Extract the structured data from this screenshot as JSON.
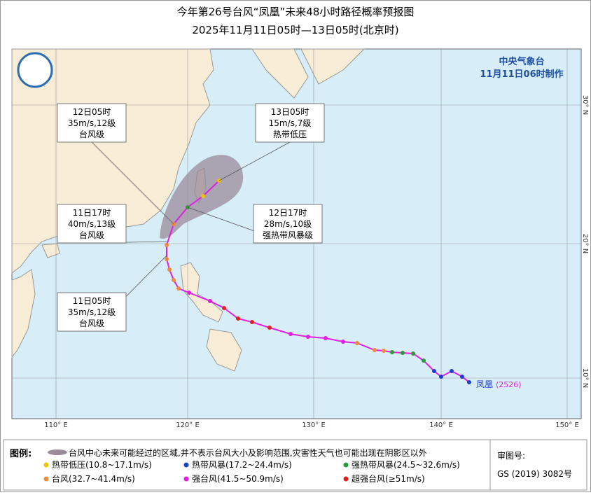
{
  "header": {
    "title": "今年第26号台风“凤凰”未来48小时路径概率预报图",
    "subtitle": "2025年11月11日05时—13日05时(北京时)"
  },
  "issuer": {
    "agency": "中央气象台",
    "made": "11月11日06时制作"
  },
  "callouts": [
    {
      "time": "12日05时",
      "wind": "35m/s,12级",
      "level": "台风级"
    },
    {
      "time": "11日17时",
      "wind": "40m/s,13级",
      "level": "台风级"
    },
    {
      "time": "11日05时",
      "wind": "35m/s,12级",
      "level": "台风级"
    },
    {
      "time": "13日05时",
      "wind": "15m/s,7级",
      "level": "热带低压"
    },
    {
      "time": "12日17时",
      "wind": "28m/s,10级",
      "level": "强热带风暴级"
    }
  ],
  "storm": {
    "name": "凤凰",
    "code": "(2526)"
  },
  "lon_labels": [
    "110° E",
    "120° E",
    "130° E",
    "140° E",
    "150° E"
  ],
  "lat_labels": [
    "30° N",
    "20° N",
    "10° N"
  ],
  "legend": {
    "title": "图例:",
    "cone": "台风中心未来可能经过的区域,并不表示台风大小及影响范围,灾害性天气也可能出现在阴影区以外",
    "items": [
      {
        "label": "热带低压(10.8~17.1m/s)",
        "color": "#f2c200"
      },
      {
        "label": "热带风暴(17.2~24.4m/s)",
        "color": "#1f3fd0"
      },
      {
        "label": "强热带风暴(24.5~32.6m/s)",
        "color": "#2a9a3a"
      },
      {
        "label": "台风(32.7~41.4m/s)",
        "color": "#f08a3a"
      },
      {
        "label": "强台风(41.5~50.9m/s)",
        "color": "#e020e0"
      },
      {
        "label": "超强台风(≥51m/s)",
        "color": "#e02020"
      }
    ]
  },
  "map_approval": {
    "label": "审图号:",
    "number": "GS (2019) 3082号"
  }
}
